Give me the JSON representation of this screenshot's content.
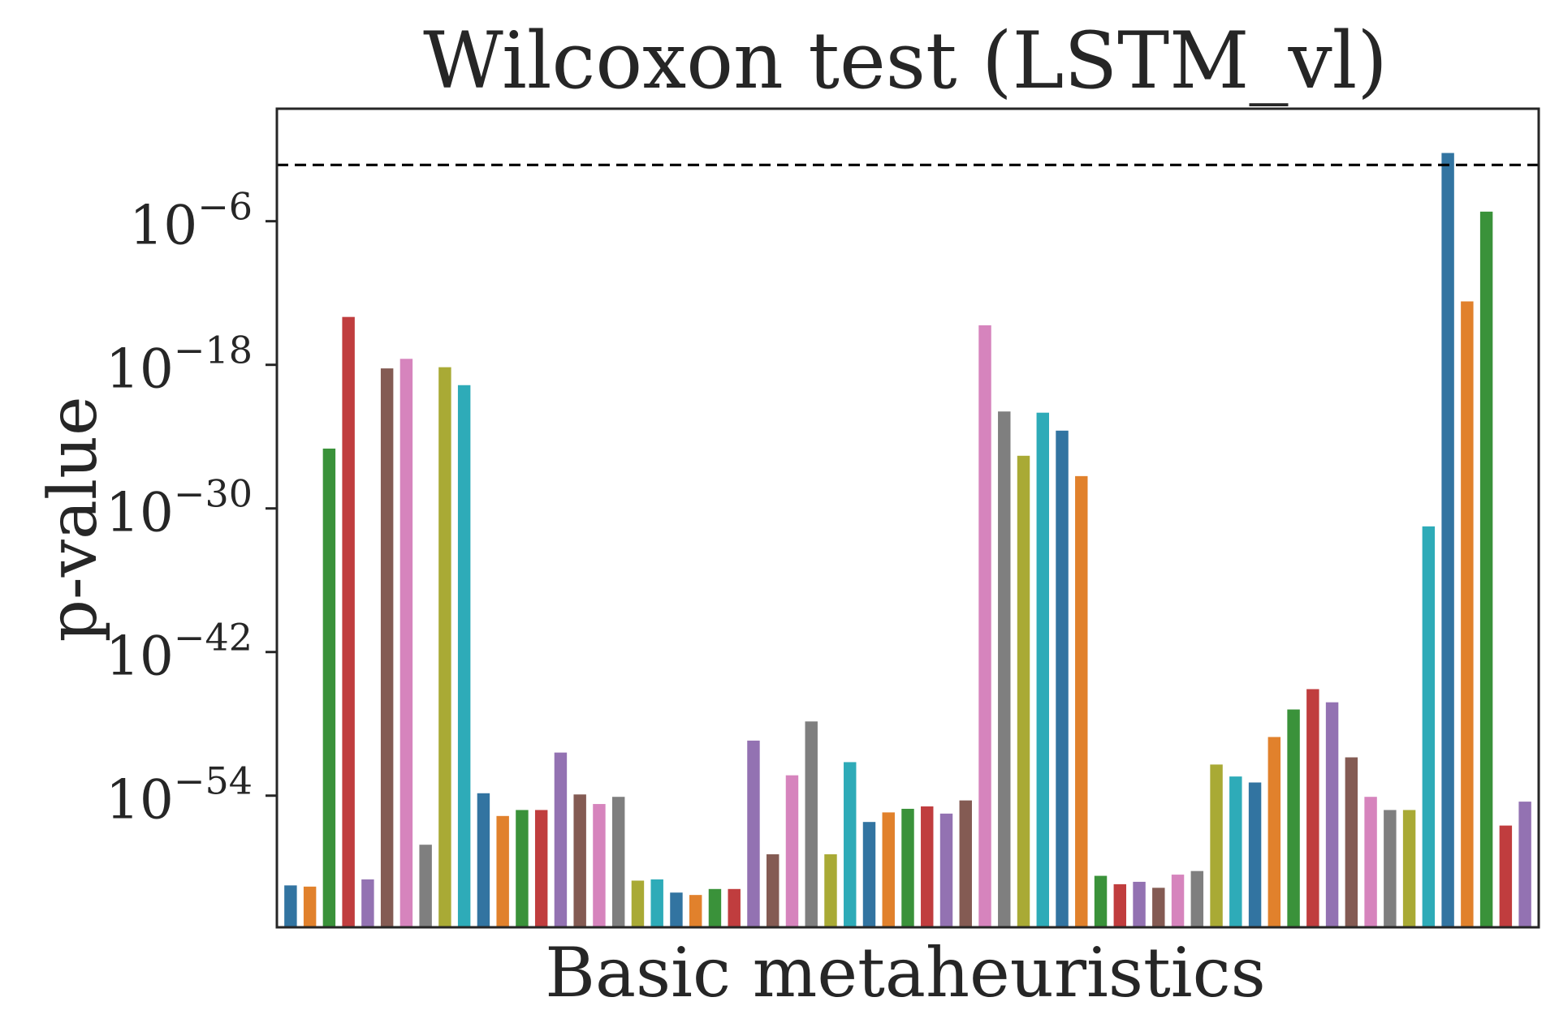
{
  "chart_data": {
    "type": "bar",
    "title": "Wilcoxon test (LSTM_vl)",
    "xlabel": "Basic metaheuristics",
    "ylabel": "p-value",
    "yscale": "log",
    "ylim_log10": [
      -65,
      3.4
    ],
    "yticks": [
      {
        "base": "10",
        "exp": "−6",
        "log10": -6
      },
      {
        "base": "10",
        "exp": "−18",
        "log10": -18
      },
      {
        "base": "10",
        "exp": "−30",
        "log10": -30
      },
      {
        "base": "10",
        "exp": "−42",
        "log10": -42
      },
      {
        "base": "10",
        "exp": "−54",
        "log10": -54
      }
    ],
    "reference_line_log10": -1.3,
    "grid": false,
    "bar_colors": [
      "#3274a1",
      "#e1812c",
      "#3a923a",
      "#c03d3e",
      "#9372b2",
      "#845b53",
      "#d684bd",
      "#7f7f7f",
      "#a9aa35",
      "#2eabb8"
    ],
    "bars_log10": [
      -61.5,
      -61.6,
      -25,
      -14,
      -61,
      -18.3,
      -17.5,
      -58.1,
      -18.2,
      -19.7,
      -53.8,
      -55.7,
      -55.2,
      -55.2,
      -50.4,
      -53.9,
      -54.7,
      -54.1,
      -61.1,
      -61,
      -62.1,
      -62.3,
      -61.8,
      -61.8,
      -49.4,
      -58.9,
      -52.3,
      -47.8,
      -58.9,
      -51.2,
      -56.2,
      -55.4,
      -55.1,
      -54.9,
      -55.5,
      -54.4,
      -14.7,
      -21.9,
      -25.6,
      -22,
      -23.5,
      -27.3,
      -60.7,
      -61.4,
      -61.2,
      -61.7,
      -60.6,
      -60.3,
      -51.4,
      -52.4,
      -52.9,
      -49.1,
      -46.8,
      -45.1,
      -46.2,
      -50.8,
      -54.1,
      -55.2,
      -55.2,
      -31.5,
      -0.3,
      -12.7,
      -5.2,
      -56.5,
      -54.5
    ]
  }
}
